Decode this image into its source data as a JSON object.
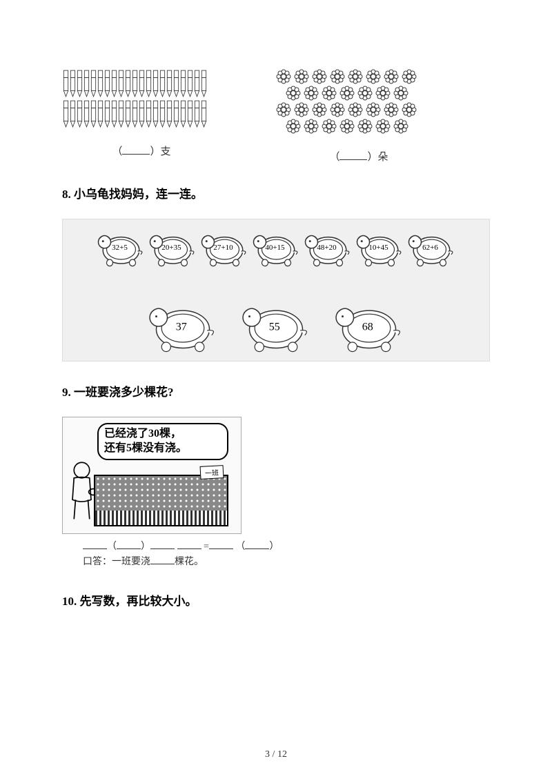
{
  "counting": {
    "pencils": {
      "row1_count": 21,
      "row2_count": 21,
      "unit": "支"
    },
    "flowers": {
      "rows": [
        8,
        7,
        8,
        7
      ],
      "unit": "朵"
    }
  },
  "q8": {
    "number": "8.",
    "title": "小乌龟找妈妈，连一连。",
    "small_turtles": [
      "32+5",
      "20+35",
      "27+10",
      "40+15",
      "48+20",
      "10+45",
      "62+6"
    ],
    "big_turtles": [
      "37",
      "55",
      "68"
    ]
  },
  "q9": {
    "number": "9.",
    "title": " 一班要浇多少棵花?",
    "bubble_line1": "已经浇了30棵，",
    "bubble_line2": "还有5棵没有浇。",
    "sign": "一班",
    "answer_prefix": "口答：一班要浇",
    "answer_suffix": "棵花。"
  },
  "q10": {
    "number": "10.",
    "title": "先写数，再比较大小。"
  },
  "page": "3 / 12",
  "colors": {
    "background": "#ffffff",
    "text": "#000000",
    "outline": "#333333",
    "gray_bg": "#f0f0f0"
  }
}
